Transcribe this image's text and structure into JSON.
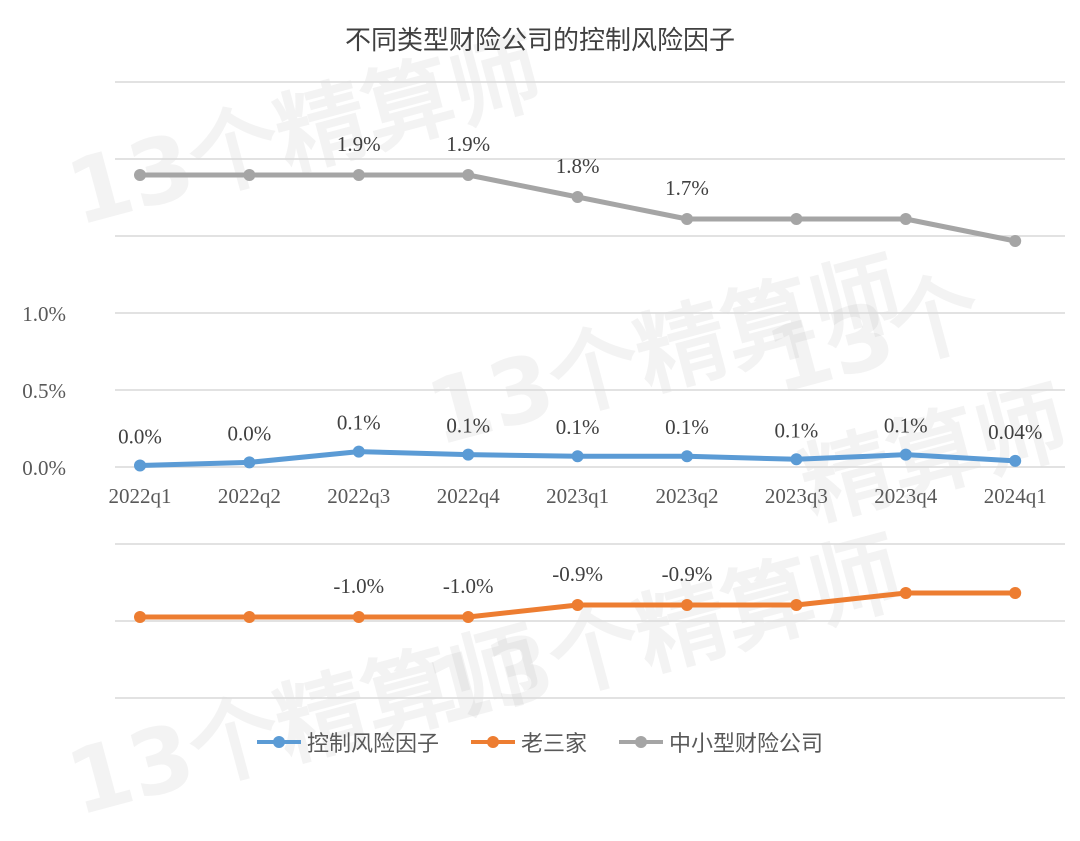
{
  "title": "不同类型财险公司的控制风险因子",
  "watermark": "13个精算师",
  "chart_data": {
    "type": "line",
    "title": "不同类型财险公司的控制风险因子",
    "xlabel": "",
    "ylabel": "",
    "categories": [
      "2022q1",
      "2022q2",
      "2022q3",
      "2022q4",
      "2023q1",
      "2023q2",
      "2023q3",
      "2023q4",
      "2024q1"
    ],
    "y_tick_labels": [
      "0.0%",
      "0.5%",
      "1.0%"
    ],
    "axis_note": "broken y-axis; gray and orange series plotted in separate bands",
    "grid": true,
    "legend_position": "bottom",
    "series": [
      {
        "name": "控制风险因子",
        "color": "#5B9BD5",
        "values": [
          0.01,
          0.03,
          0.1,
          0.08,
          0.07,
          0.07,
          0.05,
          0.08,
          0.04
        ],
        "labels": [
          "0.0%",
          "0.0%",
          "0.1%",
          "0.1%",
          "0.1%",
          "0.1%",
          "0.1%",
          "0.1%",
          "0.04%"
        ]
      },
      {
        "name": "老三家",
        "color": "#ED7D31",
        "values": [
          -1.0,
          -1.0,
          -1.0,
          -1.0,
          -0.9,
          -0.9,
          -0.9,
          -0.8,
          -0.8
        ],
        "labels": [
          "",
          "",
          "-1.0%",
          "-1.0%",
          "-0.9%",
          "-0.9%",
          "",
          "",
          ""
        ]
      },
      {
        "name": "中小型财险公司",
        "color": "#A5A5A5",
        "values": [
          1.9,
          1.9,
          1.9,
          1.9,
          1.8,
          1.7,
          1.7,
          1.7,
          1.6
        ],
        "labels": [
          "",
          "",
          "1.9%",
          "1.9%",
          "1.8%",
          "1.7%",
          "",
          "",
          ""
        ]
      }
    ]
  },
  "legend": [
    {
      "label": "控制风险因子",
      "color": "#5B9BD5"
    },
    {
      "label": "老三家",
      "color": "#ED7D31"
    },
    {
      "label": "中小型财险公司",
      "color": "#A5A5A5"
    }
  ]
}
